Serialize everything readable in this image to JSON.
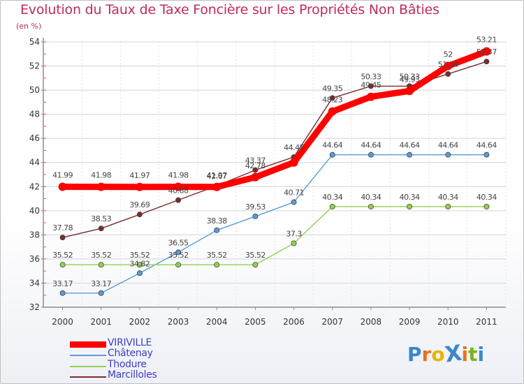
{
  "header": {
    "title": "Evolution du Taux de Taxe Foncière sur les Propriétés Non Bâties",
    "unit": "(en %)"
  },
  "chart_data": {
    "type": "line",
    "x": [
      "2000",
      "2001",
      "2002",
      "2003",
      "2004",
      "2005",
      "2006",
      "2007",
      "2008",
      "2009",
      "2010",
      "2011"
    ],
    "ylim": [
      32,
      54
    ],
    "yticks": [
      32,
      34,
      36,
      38,
      40,
      42,
      44,
      46,
      48,
      50,
      52,
      54
    ],
    "grid": true,
    "legend_placement": "bottom-left",
    "series": [
      {
        "name": "VIRIVILLE",
        "color": "#ff0000",
        "values": [
          41.99,
          41.98,
          41.97,
          41.98,
          41.97,
          42.78,
          44.0,
          48.23,
          49.45,
          49.93,
          52,
          53.21
        ],
        "labels": [
          "41.99",
          "41.98",
          "41.97",
          "41.98",
          "41.97",
          "42.78",
          "",
          "48.23",
          "49.45",
          "49.93",
          "52",
          "53.21"
        ]
      },
      {
        "name": "Châtenay",
        "color": "#5b9bd5",
        "values": [
          33.17,
          33.17,
          34.82,
          36.55,
          38.38,
          39.53,
          40.71,
          44.64,
          44.64,
          44.64,
          44.64,
          44.64
        ],
        "labels": [
          "33.17",
          "33.17",
          "34.82",
          "36.55",
          "38.38",
          "39.53",
          "40.71",
          "44.64",
          "44.64",
          "44.64",
          "44.64",
          "44.64"
        ]
      },
      {
        "name": "Thodure",
        "color": "#92d050",
        "values": [
          35.52,
          35.52,
          35.52,
          35.52,
          35.52,
          35.52,
          37.3,
          40.34,
          40.34,
          40.34,
          40.34,
          40.34
        ],
        "labels": [
          "35.52",
          "35.52",
          "35.52",
          "35.52",
          "35.52",
          "35.52",
          "37.3",
          "40.34",
          "40.34",
          "40.34",
          "40.34",
          "40.34"
        ]
      },
      {
        "name": "Marcilloles",
        "color": "#7b2c2c",
        "values": [
          37.78,
          38.53,
          39.69,
          40.88,
          42.07,
          43.37,
          44.45,
          49.35,
          50.33,
          50.33,
          51.34,
          52.37
        ],
        "labels": [
          "37.78",
          "38.53",
          "39.69",
          "40.88",
          "42.07",
          "43.37",
          "44.45",
          "49.35",
          "50.33",
          "50.33",
          "51.34",
          "52.37"
        ]
      }
    ]
  },
  "legend": {
    "items": [
      {
        "label": "VIRIVILLE",
        "color": "#ff0000"
      },
      {
        "label": "Châtenay",
        "color": "#5b9bd5"
      },
      {
        "label": "Thodure",
        "color": "#92d050"
      },
      {
        "label": "Marcilloles",
        "color": "#7b2c2c"
      }
    ]
  },
  "logo": {
    "text": "ProXiti",
    "letters": [
      "P",
      "r",
      "o",
      "X",
      "i",
      "t",
      "i"
    ],
    "colors": [
      "#3a87c9",
      "#e3731f",
      "#e8b400",
      "#3a87c9",
      "#e3731f",
      "#7ab51d",
      "#3a87c9"
    ]
  }
}
